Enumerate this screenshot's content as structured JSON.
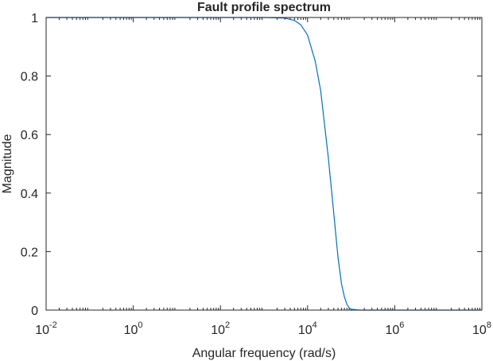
{
  "chart_data": {
    "type": "line",
    "title": "Fault profile spectrum",
    "xlabel": "Angular frequency (rad/s)",
    "ylabel": "Magnitude",
    "xscale": "log",
    "xlim": [
      0.01,
      100000000
    ],
    "ylim": [
      0,
      1
    ],
    "grid": false,
    "x_ticks": [
      {
        "base": "10",
        "exp": "-2",
        "value": 0.01
      },
      {
        "base": "10",
        "exp": "0",
        "value": 1
      },
      {
        "base": "10",
        "exp": "2",
        "value": 100
      },
      {
        "base": "10",
        "exp": "4",
        "value": 10000
      },
      {
        "base": "10",
        "exp": "6",
        "value": 1000000
      },
      {
        "base": "10",
        "exp": "8",
        "value": 100000000
      }
    ],
    "y_ticks": [
      {
        "label": "0",
        "value": 0
      },
      {
        "label": "0.2",
        "value": 0.2
      },
      {
        "label": "0.4",
        "value": 0.4
      },
      {
        "label": "0.6",
        "value": 0.6
      },
      {
        "label": "0.8",
        "value": 0.8
      },
      {
        "label": "1",
        "value": 1
      }
    ],
    "series": [
      {
        "color": "#0072bd",
        "x": [
          0.01,
          1,
          100,
          1000,
          3000,
          5000,
          7000,
          10000,
          15000,
          20000,
          30000,
          40000,
          50000,
          60000,
          70000,
          80000,
          90000,
          100000,
          150000,
          1000000,
          100000000
        ],
        "y": [
          1,
          1,
          1,
          1,
          0.998,
          0.99,
          0.975,
          0.94,
          0.85,
          0.75,
          0.52,
          0.33,
          0.18,
          0.09,
          0.045,
          0.02,
          0.008,
          0.003,
          0,
          0,
          0
        ]
      }
    ]
  }
}
